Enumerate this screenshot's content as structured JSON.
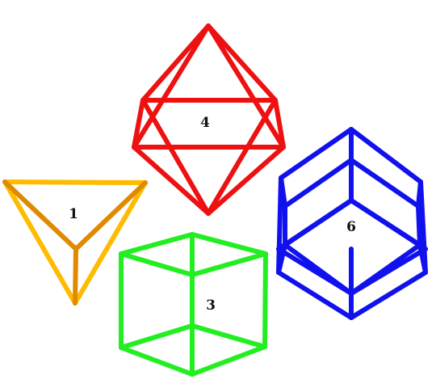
{
  "solids": [
    {
      "key": "tetrahedron",
      "label": "1",
      "color": "#ffbb00",
      "shade": "#e08a00"
    },
    {
      "key": "cube",
      "label": "3",
      "color": "#22ee22",
      "shade": "#16c416"
    },
    {
      "key": "octahedron",
      "label": "4",
      "color": "#ee1111",
      "shade": "#cc0000"
    },
    {
      "key": "rhombic-dodecahedron",
      "label": "6",
      "color": "#1111ee",
      "shade": "#0000aa"
    }
  ]
}
